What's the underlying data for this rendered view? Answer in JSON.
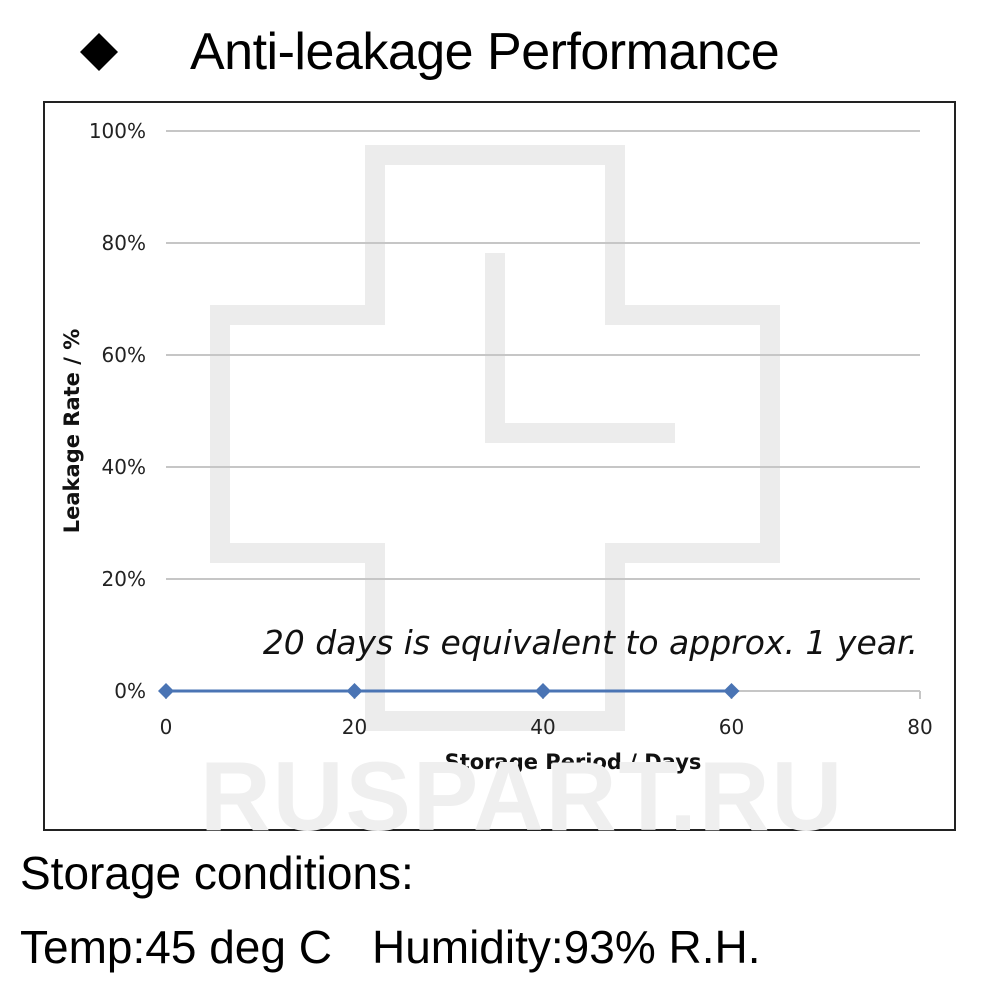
{
  "header": {
    "bullet_icon": "black-diamond-icon",
    "title": "Anti-leakage Performance"
  },
  "chart_data": {
    "type": "line",
    "title": "",
    "xlabel": "Storage Period / Days",
    "ylabel": "Leakage Rate / %",
    "xlim": [
      0,
      80
    ],
    "ylim": [
      0,
      100
    ],
    "x_ticks": [
      0,
      20,
      40,
      60,
      80
    ],
    "x_tick_labels": [
      "0",
      "20",
      "40",
      "60",
      "80"
    ],
    "y_ticks": [
      0,
      20,
      40,
      60,
      80,
      100
    ],
    "y_tick_labels": [
      "0%",
      "20%",
      "40%",
      "60%",
      "80%",
      "100%"
    ],
    "grid": "horizontal",
    "legend": "none",
    "series": [
      {
        "x": [
          0,
          20,
          40,
          60
        ],
        "values": [
          0,
          0,
          0,
          0
        ],
        "color": "#4a74b4",
        "marker": "diamond"
      }
    ],
    "annotation": "20 days is equivalent to approx. 1 year.",
    "watermark_icon": "cross-outline-icon"
  },
  "storage_conditions": {
    "heading": "Storage conditions:",
    "temp": "Temp:45 deg C",
    "humidity": "Humidity:93% R.H."
  },
  "watermark_text": "RUSPART.RU"
}
